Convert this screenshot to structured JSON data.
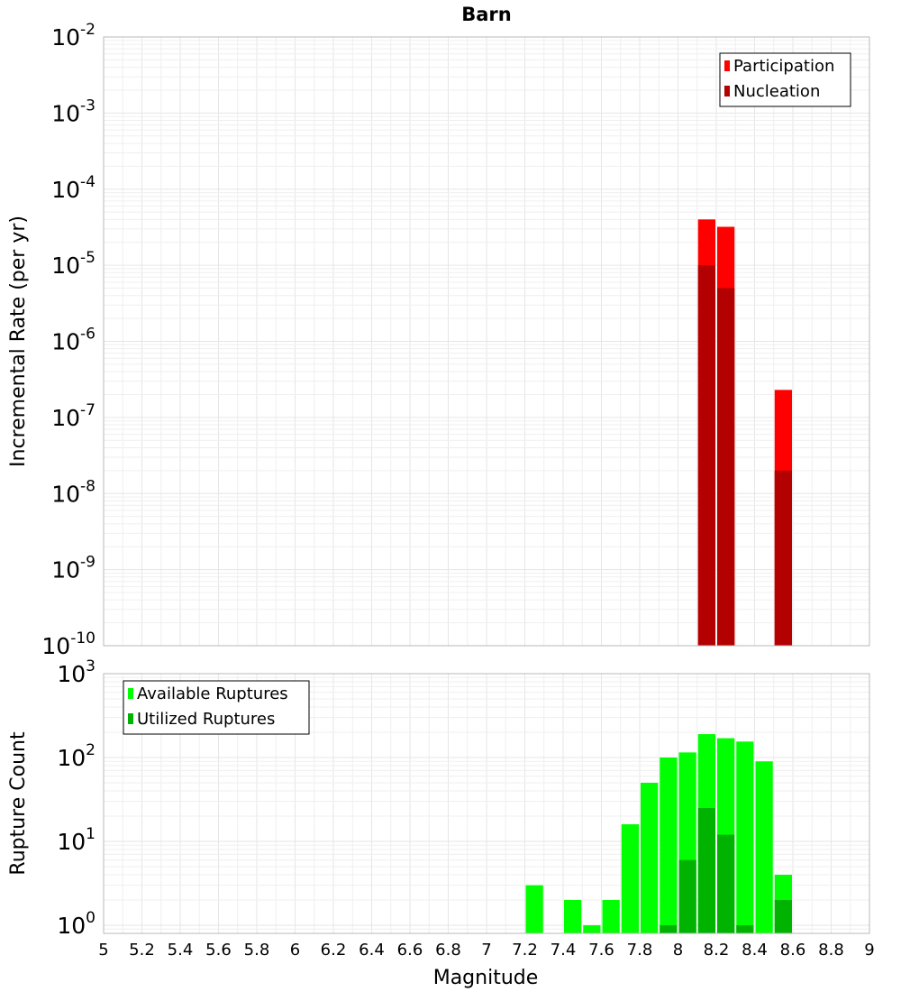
{
  "chart_data": [
    {
      "type": "bar",
      "title": "Barn",
      "xlabel": "",
      "ylabel": "Incremental Rate (per yr)",
      "yscale": "log",
      "ylim": [
        1e-10,
        0.01
      ],
      "xlim": [
        5,
        9
      ],
      "bar_width": 0.1,
      "grid": true,
      "legend": {
        "placement": "top-right",
        "entries": [
          "Participation",
          "Nucleation"
        ]
      },
      "y_tick_labels": [
        {
          "base": "10",
          "exp": "-10"
        },
        {
          "base": "10",
          "exp": "-9"
        },
        {
          "base": "10",
          "exp": "-8"
        },
        {
          "base": "10",
          "exp": "-7"
        },
        {
          "base": "10",
          "exp": "-6"
        },
        {
          "base": "10",
          "exp": "-5"
        },
        {
          "base": "10",
          "exp": "-4"
        },
        {
          "base": "10",
          "exp": "-3"
        },
        {
          "base": "10",
          "exp": "-2"
        }
      ],
      "series": [
        {
          "name": "Participation",
          "color": "#ff0000",
          "x": [
            8.15,
            8.25,
            8.55
          ],
          "values": [
            4e-05,
            3.2e-05,
            2.3e-07
          ]
        },
        {
          "name": "Nucleation",
          "color": "#b30000",
          "x": [
            8.15,
            8.25,
            8.55
          ],
          "values": [
            1e-05,
            5e-06,
            2e-08
          ]
        }
      ]
    },
    {
      "type": "bar",
      "title": "",
      "xlabel": "Magnitude",
      "ylabel": "Rupture Count",
      "yscale": "log",
      "ylim": [
        0.8,
        1000
      ],
      "xlim": [
        5,
        9
      ],
      "bar_width": 0.1,
      "grid": true,
      "legend": {
        "placement": "top-left",
        "entries": [
          "Available Ruptures",
          "Utilized Ruptures"
        ]
      },
      "y_tick_labels": [
        {
          "base": "10",
          "exp": "0"
        },
        {
          "base": "10",
          "exp": "1"
        },
        {
          "base": "10",
          "exp": "2"
        },
        {
          "base": "10",
          "exp": "3"
        }
      ],
      "x_tick_labels": [
        "5",
        "5.2",
        "5.4",
        "5.6",
        "5.8",
        "6",
        "6.2",
        "6.4",
        "6.6",
        "6.8",
        "7",
        "7.2",
        "7.4",
        "7.6",
        "7.8",
        "8",
        "8.2",
        "8.4",
        "8.6",
        "8.8",
        "9"
      ],
      "series": [
        {
          "name": "Available Ruptures",
          "color": "#00ff00",
          "x": [
            7.25,
            7.45,
            7.55,
            7.65,
            7.75,
            7.85,
            7.95,
            8.05,
            8.15,
            8.25,
            8.35,
            8.45,
            8.55
          ],
          "values": [
            3,
            2,
            1,
            2,
            16,
            50,
            100,
            115,
            190,
            170,
            155,
            90,
            4
          ]
        },
        {
          "name": "Utilized Ruptures",
          "color": "#00b300",
          "x": [
            7.95,
            8.05,
            8.15,
            8.25,
            8.35,
            8.55
          ],
          "values": [
            1,
            6,
            25,
            12,
            1,
            2
          ]
        }
      ]
    }
  ]
}
